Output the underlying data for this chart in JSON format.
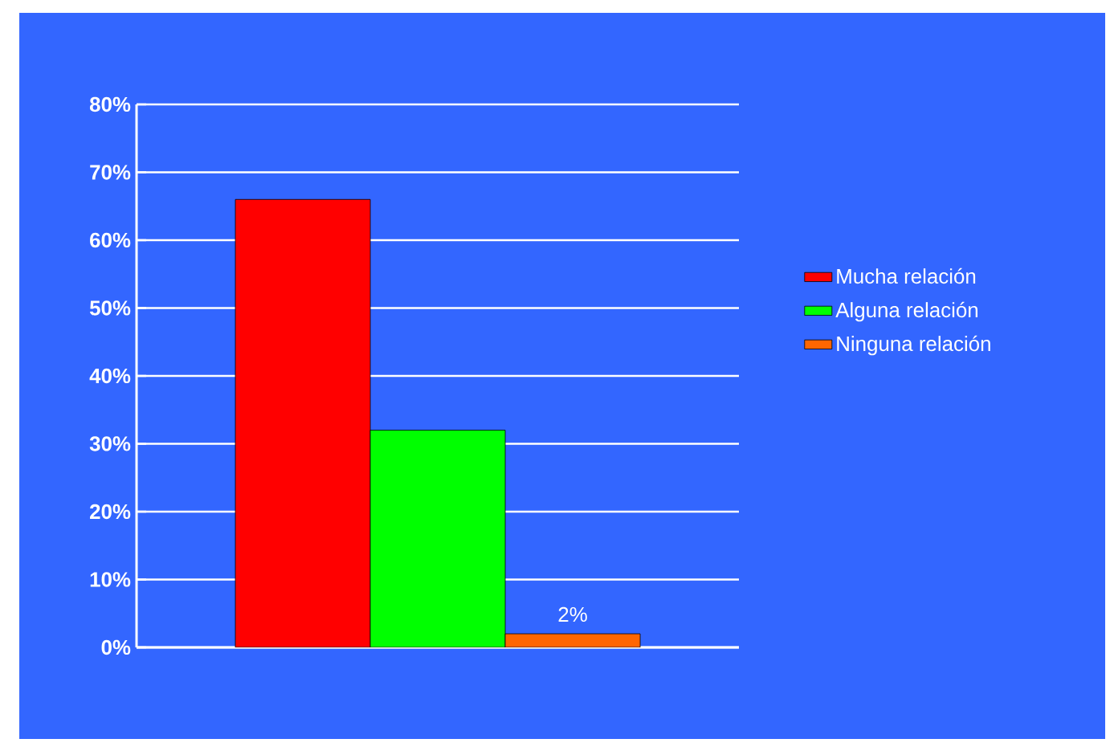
{
  "chart_data": {
    "type": "bar",
    "categories": [
      null
    ],
    "series": [
      {
        "name": "Mucha relación",
        "color": "#ff0000",
        "values": [
          66
        ]
      },
      {
        "name": "Alguna relación",
        "color": "#00ff00",
        "values": [
          32
        ]
      },
      {
        "name": "Ninguna relación",
        "color": "#ff6600",
        "values": [
          2
        ],
        "value_labels": [
          "2%"
        ]
      }
    ],
    "ylim": [
      0,
      80
    ],
    "yticks": [
      {
        "value": 0,
        "label": "0%"
      },
      {
        "value": 10,
        "label": "10%"
      },
      {
        "value": 20,
        "label": "20%"
      },
      {
        "value": 30,
        "label": "30%"
      },
      {
        "value": 40,
        "label": "40%"
      },
      {
        "value": 50,
        "label": "50%"
      },
      {
        "value": 60,
        "label": "60%"
      },
      {
        "value": 70,
        "label": "70%"
      },
      {
        "value": 80,
        "label": "80%"
      }
    ],
    "grid": "y",
    "legend": "right"
  }
}
